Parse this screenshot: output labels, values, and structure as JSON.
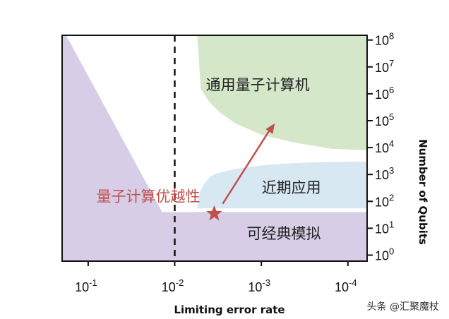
{
  "chart_data": {
    "type": "area",
    "xlabel": "Limiting error rate",
    "ylabel": "Number of Qubits",
    "x_scale": "log",
    "y_scale": "log",
    "x_reversed": true,
    "xlim": [
      0.2,
      6e-05
    ],
    "ylim": [
      0.6,
      150000000
    ],
    "x_ticks": [
      {
        "value": 0.1,
        "base": "10",
        "exp": "-1"
      },
      {
        "value": 0.01,
        "base": "10",
        "exp": "-2"
      },
      {
        "value": 0.001,
        "base": "10",
        "exp": "-3"
      },
      {
        "value": 0.0001,
        "base": "10",
        "exp": "-4"
      }
    ],
    "y_ticks": [
      {
        "value": 1,
        "base": "10",
        "exp": "0"
      },
      {
        "value": 10,
        "base": "10",
        "exp": "1"
      },
      {
        "value": 100,
        "base": "10",
        "exp": "2"
      },
      {
        "value": 1000,
        "base": "10",
        "exp": "3"
      },
      {
        "value": 10000,
        "base": "10",
        "exp": "4"
      },
      {
        "value": 100000,
        "base": "10",
        "exp": "5"
      },
      {
        "value": 1000000,
        "base": "10",
        "exp": "6"
      },
      {
        "value": 10000000,
        "base": "10",
        "exp": "7"
      },
      {
        "value": 100000000,
        "base": "10",
        "exp": "8"
      }
    ],
    "regions": [
      {
        "label": "可经典模拟",
        "color": "#d7cde6",
        "label_at": {
          "x": 0.00055,
          "y": 6
        },
        "boundary": [
          {
            "x": 0.18,
            "y": 100000000
          },
          {
            "x": 0.014,
            "y": 40
          },
          {
            "x": 6e-05,
            "y": 40
          }
        ]
      },
      {
        "label": "近期应用",
        "color": "#d8e8f3",
        "label_at": {
          "x": 0.00045,
          "y": 300
        },
        "boundary": [
          {
            "x": 0.0055,
            "y": 55
          },
          {
            "x": 0.0035,
            "y": 1000
          },
          {
            "x": 6e-05,
            "y": 3000
          },
          {
            "x": 6e-05,
            "y": 55
          }
        ]
      },
      {
        "label": "通用量子计算机",
        "color": "#d4e7c9",
        "label_at": {
          "x": 0.0011,
          "y": 2000000
        },
        "curve": [
          {
            "x": 0.0055,
            "y": 150000000
          },
          {
            "x": 0.005,
            "y": 1500000
          },
          {
            "x": 0.004,
            "y": 500000
          },
          {
            "x": 0.003,
            "y": 200000
          },
          {
            "x": 0.002,
            "y": 80000
          },
          {
            "x": 0.001,
            "y": 30000
          },
          {
            "x": 0.0004,
            "y": 15000
          },
          {
            "x": 0.00015,
            "y": 9000
          },
          {
            "x": 6e-05,
            "y": 8000
          }
        ]
      }
    ],
    "threshold_line": {
      "x": 0.01,
      "style": "dashed"
    },
    "annotations": [
      {
        "label": "量子计算优越性",
        "marker": "star",
        "color": "#c0504d",
        "point": {
          "x": 0.0035,
          "y": 35
        },
        "arrow_to": {
          "x": 0.0007,
          "y": 80000
        }
      }
    ]
  },
  "watermark": "头条 @汇聚魔杖"
}
